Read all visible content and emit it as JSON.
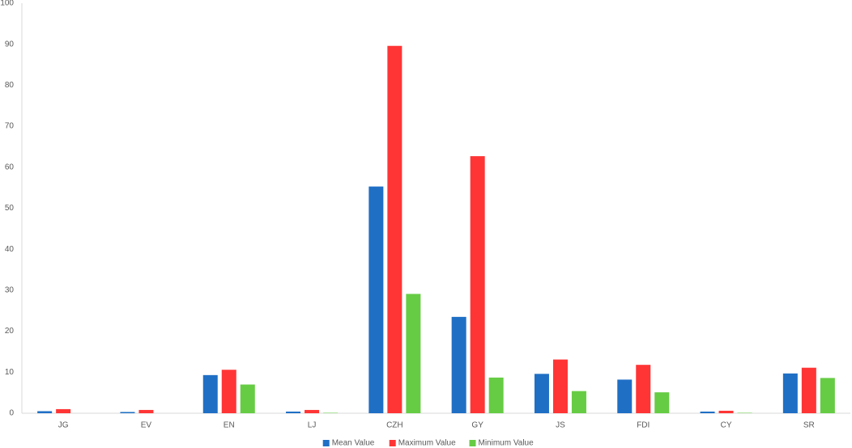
{
  "chart_data": {
    "type": "bar",
    "categories": [
      "JG",
      "EV",
      "EN",
      "LJ",
      "CZH",
      "GY",
      "JS",
      "FDI",
      "CY",
      "SR"
    ],
    "series": [
      {
        "name": "Mean Value",
        "color": "#1f6fc5",
        "values": [
          0.5,
          0.3,
          9.3,
          0.4,
          55.3,
          23.5,
          9.6,
          8.2,
          0.4,
          9.7
        ]
      },
      {
        "name": "Maximum Value",
        "color": "#ff3535",
        "values": [
          1,
          0.8,
          10.6,
          0.8,
          89.6,
          62.7,
          13.1,
          11.8,
          0.6,
          11.1
        ]
      },
      {
        "name": "Minimum Value",
        "color": "#66cc44",
        "values": [
          0,
          0,
          7,
          0.1,
          29.1,
          8.7,
          5.4,
          5.1,
          0.1,
          8.6
        ]
      }
    ],
    "ylim": [
      0,
      100
    ],
    "yticks": [
      0,
      10,
      20,
      30,
      40,
      50,
      60,
      70,
      80,
      90,
      100
    ],
    "grid": false,
    "legend": "bottom"
  }
}
